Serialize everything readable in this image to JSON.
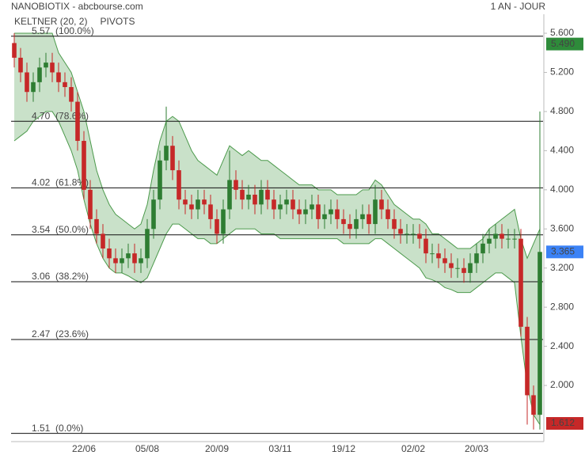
{
  "chart_data": {
    "type": "candlestick",
    "title": "NANOBIOTIX - abcbourse.com",
    "period": "1 AN - JOUR",
    "legend": [
      {
        "name": "KELTNER (20, 2)",
        "color": "#4c9a4c"
      },
      {
        "name": "PIVOTS",
        "color": "#444444"
      }
    ],
    "categories": [
      null,
      null,
      null,
      null,
      null,
      null,
      null,
      null,
      null,
      null,
      null,
      "22/06",
      null,
      null,
      null,
      null,
      null,
      null,
      null,
      null,
      null,
      "05/08",
      null,
      null,
      null,
      null,
      null,
      null,
      null,
      null,
      null,
      null,
      "20/09",
      null,
      null,
      null,
      null,
      null,
      null,
      null,
      null,
      null,
      "03/11",
      null,
      null,
      null,
      null,
      null,
      null,
      null,
      null,
      null,
      "19/12",
      null,
      null,
      null,
      null,
      null,
      null,
      null,
      null,
      null,
      null,
      "02/02",
      null,
      null,
      null,
      null,
      null,
      null,
      null,
      null,
      null,
      "20/03",
      null,
      null,
      null,
      null,
      null,
      null,
      null,
      null,
      null,
      null
    ],
    "open": [
      5.5,
      5.35,
      5.2,
      5.0,
      5.1,
      5.25,
      5.3,
      5.2,
      5.1,
      5.05,
      4.9,
      4.5,
      4.0,
      3.7,
      3.55,
      3.4,
      3.3,
      3.25,
      3.3,
      3.35,
      3.25,
      3.3,
      3.6,
      3.9,
      4.3,
      4.45,
      4.2,
      3.9,
      3.85,
      3.8,
      3.9,
      3.85,
      3.7,
      3.55,
      3.8,
      4.1,
      4.0,
      3.9,
      3.95,
      3.85,
      4.0,
      3.9,
      3.8,
      3.85,
      3.9,
      3.8,
      3.75,
      3.8,
      3.85,
      3.7,
      3.75,
      3.8,
      3.7,
      3.65,
      3.6,
      3.7,
      3.75,
      3.65,
      3.9,
      3.8,
      3.7,
      3.6,
      3.55,
      3.55,
      3.55,
      3.5,
      3.35,
      3.35,
      3.3,
      3.25,
      3.2,
      3.2,
      3.15,
      3.25,
      3.35,
      3.45,
      3.5,
      3.55,
      3.5,
      3.5,
      3.5,
      2.6,
      1.9,
      1.7
    ],
    "high": [
      5.6,
      5.45,
      5.3,
      5.2,
      5.35,
      5.4,
      5.4,
      5.3,
      5.2,
      5.15,
      5.0,
      4.6,
      4.1,
      3.8,
      3.65,
      3.5,
      3.4,
      3.4,
      3.45,
      3.45,
      3.4,
      3.7,
      4.0,
      4.4,
      4.85,
      4.55,
      4.3,
      4.0,
      3.95,
      4.0,
      4.0,
      3.95,
      3.8,
      3.9,
      4.4,
      4.2,
      4.1,
      4.05,
      4.05,
      4.1,
      4.1,
      4.0,
      3.95,
      4.0,
      4.0,
      3.9,
      3.9,
      3.95,
      3.95,
      3.85,
      3.9,
      3.9,
      3.8,
      3.75,
      3.8,
      3.85,
      3.85,
      4.05,
      4.0,
      3.9,
      3.8,
      3.7,
      3.65,
      3.65,
      3.65,
      3.6,
      3.45,
      3.45,
      3.4,
      3.35,
      3.3,
      3.3,
      3.35,
      3.45,
      3.55,
      3.6,
      3.65,
      3.65,
      3.6,
      3.6,
      3.6,
      2.7,
      2.0,
      4.8
    ],
    "low": [
      5.25,
      5.1,
      4.9,
      4.9,
      5.0,
      5.15,
      5.1,
      5.0,
      4.95,
      4.8,
      4.4,
      3.9,
      3.6,
      3.45,
      3.3,
      3.2,
      3.15,
      3.15,
      3.2,
      3.15,
      3.15,
      3.2,
      3.5,
      3.8,
      4.2,
      4.1,
      3.8,
      3.75,
      3.7,
      3.7,
      3.75,
      3.6,
      3.45,
      3.45,
      3.7,
      3.9,
      3.8,
      3.8,
      3.75,
      3.75,
      3.8,
      3.7,
      3.7,
      3.75,
      3.7,
      3.65,
      3.65,
      3.7,
      3.6,
      3.6,
      3.65,
      3.6,
      3.55,
      3.5,
      3.5,
      3.6,
      3.55,
      3.55,
      3.7,
      3.6,
      3.5,
      3.45,
      3.45,
      3.45,
      3.4,
      3.25,
      3.25,
      3.2,
      3.15,
      3.1,
      3.1,
      3.05,
      3.05,
      3.15,
      3.25,
      3.35,
      3.4,
      3.4,
      3.4,
      3.4,
      2.5,
      1.6,
      1.55,
      1.55
    ],
    "close": [
      5.35,
      5.2,
      5.0,
      5.1,
      5.25,
      5.3,
      5.2,
      5.1,
      5.05,
      4.9,
      4.5,
      4.0,
      3.7,
      3.55,
      3.4,
      3.3,
      3.25,
      3.3,
      3.35,
      3.25,
      3.3,
      3.6,
      3.9,
      4.3,
      4.45,
      4.2,
      3.9,
      3.85,
      3.8,
      3.9,
      3.85,
      3.7,
      3.55,
      3.8,
      4.1,
      4.0,
      3.9,
      3.95,
      3.85,
      4.0,
      3.9,
      3.8,
      3.85,
      3.9,
      3.8,
      3.75,
      3.8,
      3.85,
      3.7,
      3.75,
      3.8,
      3.7,
      3.65,
      3.6,
      3.7,
      3.75,
      3.65,
      3.9,
      3.8,
      3.7,
      3.6,
      3.55,
      3.55,
      3.55,
      3.5,
      3.35,
      3.35,
      3.3,
      3.25,
      3.2,
      3.2,
      3.15,
      3.25,
      3.35,
      3.45,
      3.5,
      3.55,
      3.5,
      3.5,
      3.5,
      2.6,
      1.9,
      1.7,
      3.365
    ],
    "up_color": "#2e7d32",
    "down_color": "#c62828",
    "keltner_upper": [
      5.6,
      5.6,
      5.6,
      5.6,
      5.6,
      5.6,
      5.6,
      5.4,
      5.3,
      5.2,
      5.0,
      4.8,
      4.5,
      4.2,
      4.0,
      3.85,
      3.75,
      3.7,
      3.65,
      3.6,
      3.65,
      3.85,
      4.2,
      4.5,
      4.7,
      4.75,
      4.7,
      4.55,
      4.4,
      4.3,
      4.25,
      4.2,
      4.15,
      4.3,
      4.45,
      4.4,
      4.35,
      4.4,
      4.35,
      4.3,
      4.3,
      4.25,
      4.2,
      4.15,
      4.1,
      4.05,
      4.05,
      4.05,
      4.0,
      4.0,
      4.0,
      3.95,
      3.95,
      3.95,
      3.95,
      4.0,
      4.0,
      4.1,
      4.05,
      3.95,
      3.85,
      3.8,
      3.75,
      3.7,
      3.7,
      3.65,
      3.55,
      3.55,
      3.5,
      3.45,
      3.4,
      3.4,
      3.4,
      3.45,
      3.5,
      3.6,
      3.65,
      3.7,
      3.75,
      3.8,
      3.5,
      3.3,
      3.45,
      3.6
    ],
    "keltner_lower": [
      4.5,
      4.55,
      4.6,
      4.7,
      4.75,
      4.8,
      4.8,
      4.7,
      4.55,
      4.4,
      4.2,
      3.9,
      3.65,
      3.45,
      3.3,
      3.2,
      3.15,
      3.15,
      3.12,
      3.08,
      3.05,
      3.1,
      3.25,
      3.4,
      3.55,
      3.65,
      3.65,
      3.6,
      3.55,
      3.5,
      3.5,
      3.45,
      3.45,
      3.5,
      3.55,
      3.6,
      3.6,
      3.6,
      3.6,
      3.55,
      3.55,
      3.55,
      3.5,
      3.5,
      3.5,
      3.5,
      3.5,
      3.5,
      3.5,
      3.5,
      3.5,
      3.5,
      3.45,
      3.45,
      3.45,
      3.45,
      3.45,
      3.5,
      3.5,
      3.45,
      3.4,
      3.35,
      3.3,
      3.25,
      3.2,
      3.1,
      3.08,
      3.05,
      3.0,
      2.98,
      2.95,
      2.95,
      2.95,
      3.0,
      3.05,
      3.1,
      3.15,
      3.15,
      3.1,
      3.05,
      2.5,
      2.0,
      1.7,
      1.6
    ],
    "band_color": "#4c9a4c",
    "pivots": [
      {
        "value": 5.57,
        "label": "5.57  (100.0%)"
      },
      {
        "value": 4.7,
        "label": "4.70  (78.6%)"
      },
      {
        "value": 4.02,
        "label": "4.02  (61.8%)"
      },
      {
        "value": 3.54,
        "label": "3.54  (50.0%)"
      },
      {
        "value": 3.06,
        "label": "3.06  (38.2%)"
      },
      {
        "value": 2.47,
        "label": "2.47  (23.6%)"
      },
      {
        "value": 1.51,
        "label": "1.51  (0.0%)"
      }
    ],
    "price_markers": [
      {
        "value": 5.49,
        "label": "5.490",
        "color": "#2e8b3a"
      },
      {
        "value": 3.365,
        "label": "3.365",
        "color": "#3b82f6"
      },
      {
        "value": 1.612,
        "label": "1.612",
        "color": "#c62828"
      }
    ],
    "ylim": [
      1.41,
      5.94
    ],
    "yticks": [
      {
        "value": 2.0,
        "label": "2.000"
      },
      {
        "value": 2.4,
        "label": "2.400"
      },
      {
        "value": 2.8,
        "label": "2.800"
      },
      {
        "value": 3.2,
        "label": "3.200"
      },
      {
        "value": 3.6,
        "label": "3.600"
      },
      {
        "value": 4.0,
        "label": "4.000"
      },
      {
        "value": 4.4,
        "label": "4.400"
      },
      {
        "value": 4.8,
        "label": "4.800"
      },
      {
        "value": 5.2,
        "label": "5.200"
      },
      {
        "value": 5.6,
        "label": "5.600"
      }
    ]
  }
}
